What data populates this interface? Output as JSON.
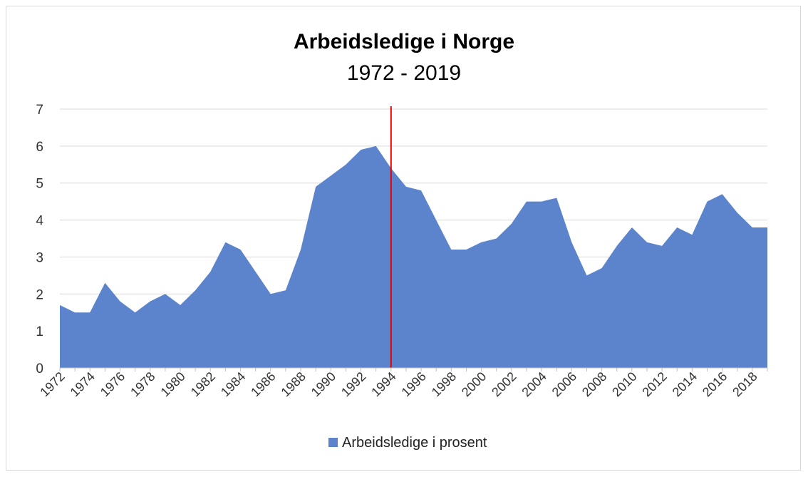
{
  "chart_data": {
    "type": "area",
    "title": "Arbeidsledige i Norge",
    "subtitle": "1972 - 2019",
    "xlabel": "",
    "ylabel": "",
    "ylim": [
      0,
      7
    ],
    "yticks": [
      0,
      1,
      2,
      3,
      4,
      5,
      6,
      7
    ],
    "x": [
      1972,
      1973,
      1974,
      1975,
      1976,
      1977,
      1978,
      1979,
      1980,
      1981,
      1982,
      1983,
      1984,
      1985,
      1986,
      1987,
      1988,
      1989,
      1990,
      1991,
      1992,
      1993,
      1994,
      1995,
      1996,
      1997,
      1998,
      1999,
      2000,
      2001,
      2002,
      2003,
      2004,
      2005,
      2006,
      2007,
      2008,
      2009,
      2010,
      2011,
      2012,
      2013,
      2014,
      2015,
      2016,
      2017,
      2018,
      2019
    ],
    "xtick_labels": [
      "1972",
      "1974",
      "1976",
      "1978",
      "1980",
      "1982",
      "1984",
      "1986",
      "1988",
      "1990",
      "1992",
      "1994",
      "1996",
      "1998",
      "2000",
      "2002",
      "2004",
      "2006",
      "2008",
      "2010",
      "2012",
      "2014",
      "2016",
      "2018"
    ],
    "series": [
      {
        "name": "Arbeidsledige i prosent",
        "color": "#5b84cc",
        "values": [
          1.7,
          1.5,
          1.5,
          2.3,
          1.8,
          1.5,
          1.8,
          2.0,
          1.7,
          2.1,
          2.6,
          3.4,
          3.2,
          2.6,
          2.0,
          2.1,
          3.2,
          4.9,
          5.2,
          5.5,
          5.9,
          6.0,
          5.4,
          4.9,
          4.8,
          4.0,
          3.2,
          3.2,
          3.4,
          3.5,
          3.9,
          4.5,
          4.5,
          4.6,
          3.4,
          2.5,
          2.7,
          3.3,
          3.8,
          3.4,
          3.3,
          3.8,
          3.6,
          4.5,
          4.7,
          4.2,
          3.8,
          3.8
        ]
      }
    ],
    "marker_line": {
      "x": 1994,
      "color": "#e00000"
    },
    "grid": true,
    "gridline_color": "#d9d9d9",
    "legend_position": "bottom"
  }
}
